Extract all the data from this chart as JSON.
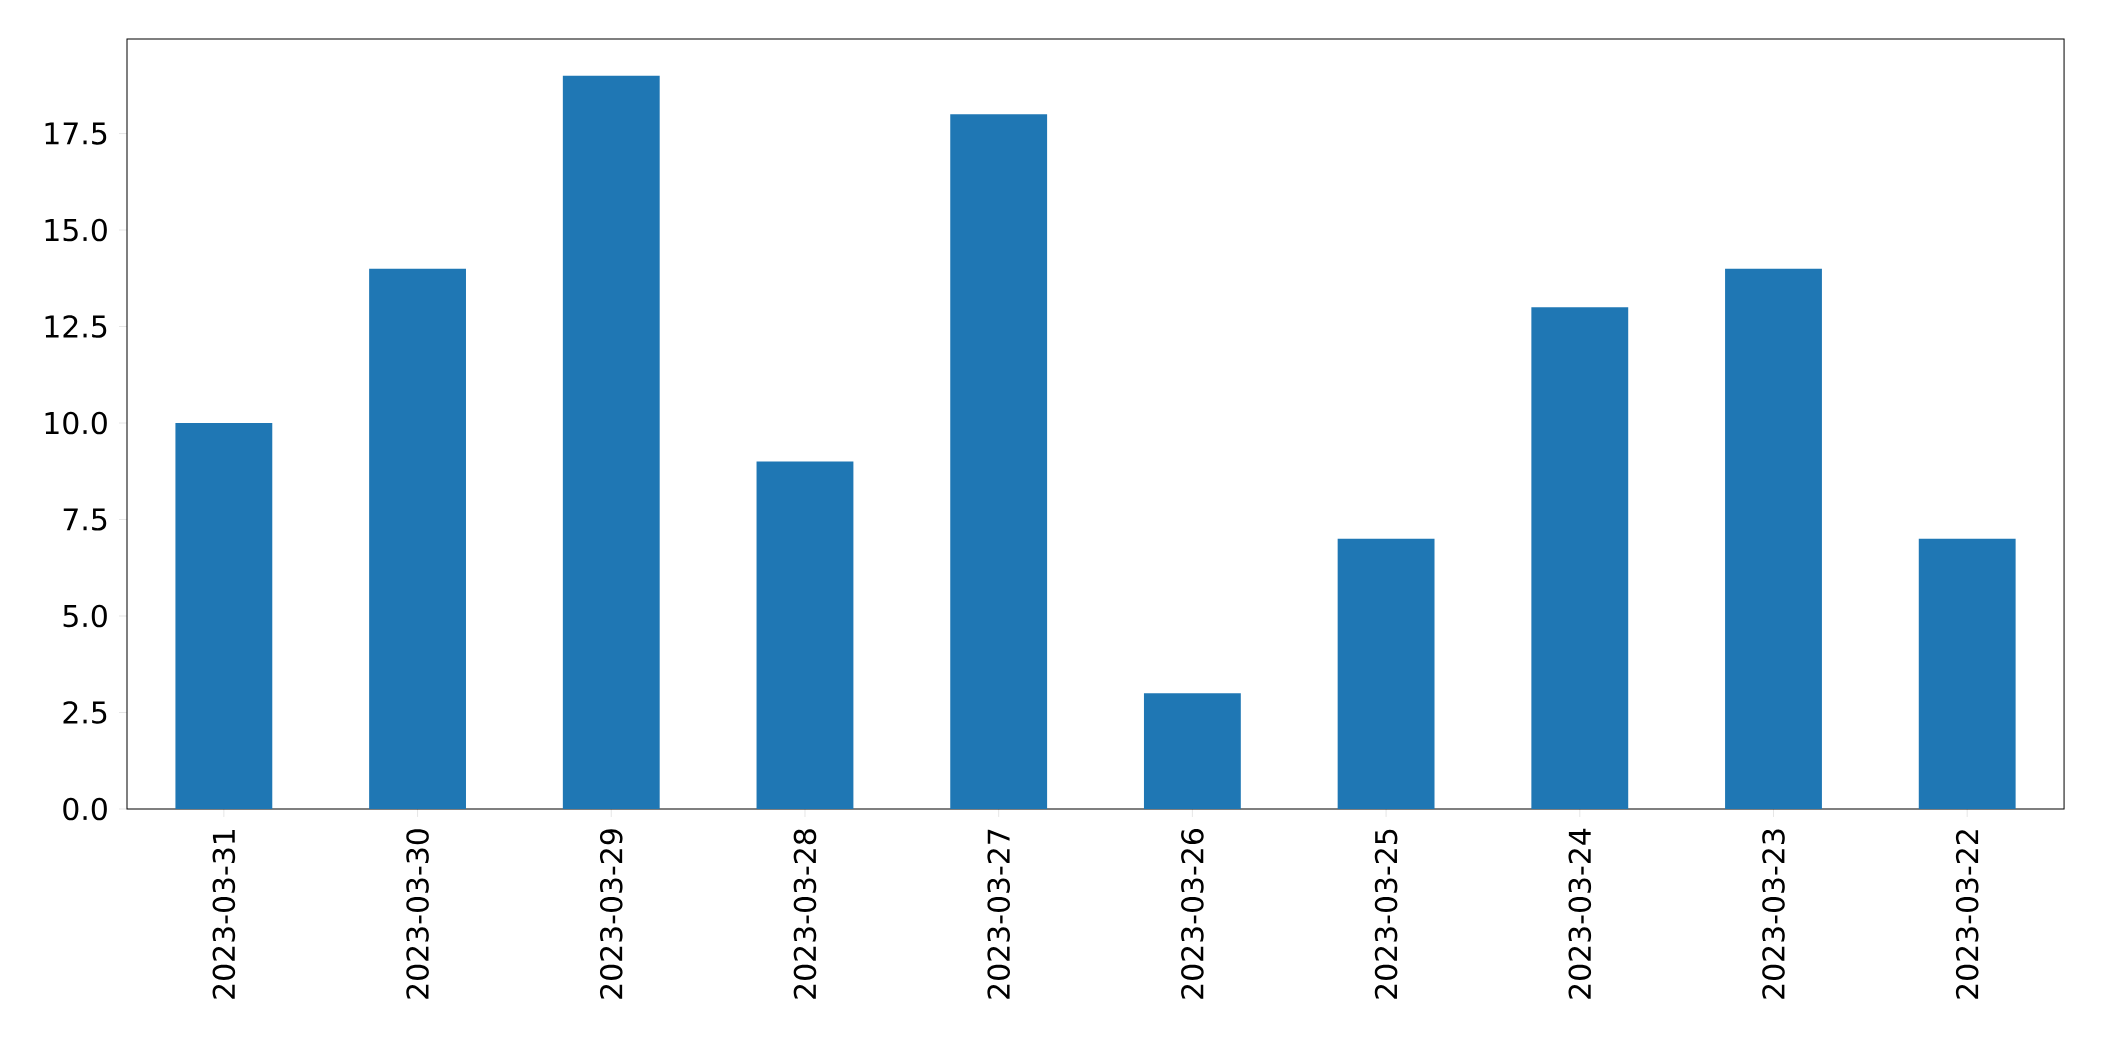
{
  "chart_data": {
    "type": "bar",
    "categories": [
      "2023-03-31",
      "2023-03-30",
      "2023-03-29",
      "2023-03-28",
      "2023-03-27",
      "2023-03-26",
      "2023-03-25",
      "2023-03-24",
      "2023-03-23",
      "2023-03-22"
    ],
    "values": [
      10,
      14,
      19,
      9,
      18,
      3,
      7,
      13,
      14,
      7
    ],
    "color": "#1f77b4",
    "ylim": [
      0,
      19.95
    ],
    "yticks": [
      {
        "value": 0,
        "label": "0.0"
      },
      2.5,
      {
        "value": 5,
        "label": "5.0"
      },
      7.5,
      {
        "value": 10,
        "label": "10.0"
      },
      12.5,
      {
        "value": 15,
        "label": "15.0"
      },
      17.5
    ],
    "grid": false
  }
}
